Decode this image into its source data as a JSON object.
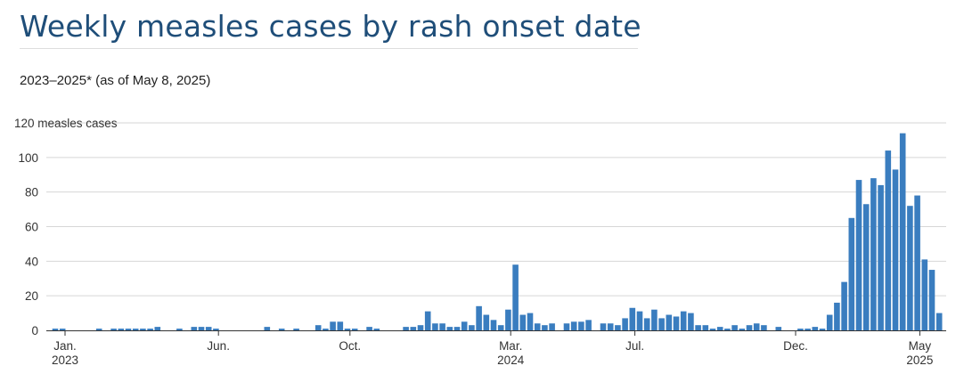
{
  "title": "Weekly measles cases by rash onset date",
  "subtitle": "2023–2025* (as of May 8, 2025)",
  "chart_data": {
    "type": "bar",
    "ylabel": "measles cases",
    "ylim": [
      0,
      120
    ],
    "y_ticks": [
      {
        "value": 0,
        "label": "0"
      },
      {
        "value": 20,
        "label": "20"
      },
      {
        "value": 40,
        "label": "40"
      },
      {
        "value": 60,
        "label": "60"
      },
      {
        "value": 80,
        "label": "80"
      },
      {
        "value": 100,
        "label": "100"
      },
      {
        "value": 120,
        "label": "120 measles cases"
      }
    ],
    "x_ticks": [
      {
        "week": 1,
        "label": "Jan.",
        "year": "2023"
      },
      {
        "week": 22,
        "label": "Jun."
      },
      {
        "week": 40,
        "label": "Oct."
      },
      {
        "week": 62,
        "label": "Mar.",
        "year": "2024"
      },
      {
        "week": 79,
        "label": "Jul."
      },
      {
        "week": 101,
        "label": "Dec."
      },
      {
        "week": 118,
        "label": "May",
        "year": "2025"
      }
    ],
    "bar_color": "#3a7dbf",
    "grid": "horizontal",
    "values": [
      1,
      1,
      0,
      0,
      0,
      0,
      1,
      0,
      1,
      1,
      1,
      1,
      1,
      1,
      2,
      0,
      0,
      1,
      0,
      2,
      2,
      2,
      1,
      0,
      0,
      0,
      0,
      0,
      0,
      2,
      0,
      1,
      0,
      1,
      0,
      0,
      3,
      1,
      5,
      5,
      1,
      1,
      0,
      2,
      1,
      0,
      0,
      0,
      2,
      2,
      3,
      11,
      4,
      4,
      2,
      2,
      5,
      3,
      14,
      9,
      6,
      3,
      12,
      38,
      9,
      10,
      4,
      3,
      4,
      0,
      4,
      5,
      5,
      6,
      0,
      4,
      4,
      3,
      7,
      13,
      11,
      7,
      12,
      7,
      9,
      8,
      11,
      10,
      3,
      3,
      1,
      2,
      1,
      3,
      1,
      3,
      4,
      3,
      0,
      2,
      0,
      0,
      1,
      1,
      2,
      1,
      9,
      16,
      28,
      65,
      87,
      73,
      88,
      84,
      104,
      93,
      114,
      72,
      78,
      41,
      35,
      10
    ]
  }
}
